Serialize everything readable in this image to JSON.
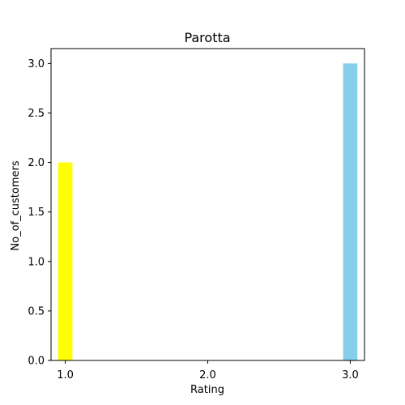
{
  "chart_data": {
    "type": "bar",
    "title": "Parotta",
    "xlabel": "Rating",
    "ylabel": "No_of_customers",
    "x_ticks": [
      "1.0",
      "2.0",
      "3.0"
    ],
    "y_ticks": [
      "0.0",
      "0.5",
      "1.0",
      "1.5",
      "2.0",
      "2.5",
      "3.0"
    ],
    "xlim": [
      0.9,
      3.1
    ],
    "ylim": [
      0,
      3.15
    ],
    "bars": [
      {
        "x": 1.0,
        "value": 2,
        "color": "#ffff00"
      },
      {
        "x": 3.0,
        "value": 3,
        "color": "#87ceeb"
      }
    ],
    "grid": false,
    "legend": "none"
  }
}
